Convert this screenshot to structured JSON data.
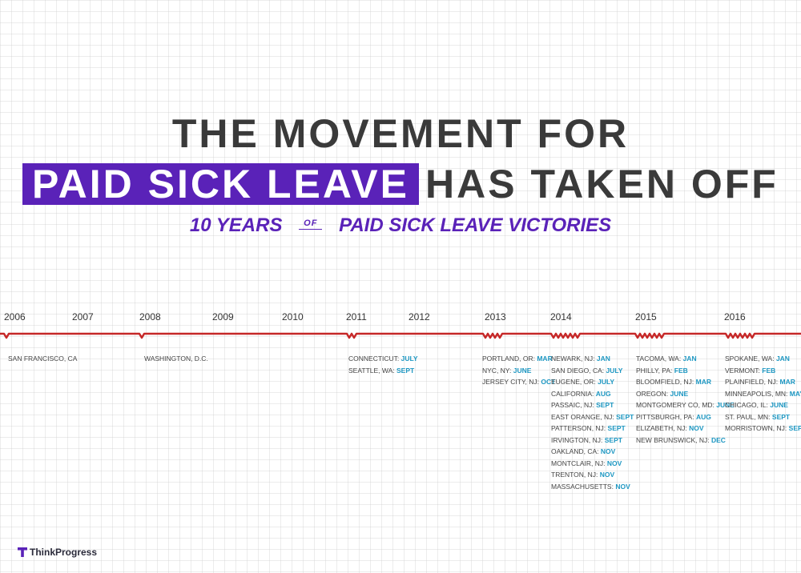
{
  "title": {
    "line1": "THE MOVEMENT FOR",
    "highlight": "PAID SICK LEAVE",
    "rest": "HAS TAKEN OFF"
  },
  "subtitle": {
    "before": "10 YEARS",
    "of": "OF",
    "after": "PAID SICK LEAVE VICTORIES"
  },
  "years": [
    "2006",
    "2007",
    "2008",
    "2009",
    "2010",
    "2011",
    "2012",
    "2013",
    "2014",
    "2015",
    "2016"
  ],
  "colors": {
    "timeline": "#c62828",
    "accent": "#5a22b8",
    "month": "#1d97c2"
  },
  "victories": [
    {
      "year": "2006",
      "entries": [
        {
          "place": "SAN FRANCISCO, CA",
          "month": ""
        }
      ]
    },
    {
      "year": "2008",
      "entries": [
        {
          "place": "WASHINGTON, D.C.",
          "month": ""
        }
      ]
    },
    {
      "year": "2011",
      "entries": [
        {
          "place": "CONNECTICUT:",
          "month": "JULY"
        },
        {
          "place": "SEATTLE, WA:",
          "month": "SEPT"
        }
      ]
    },
    {
      "year": "2013",
      "entries": [
        {
          "place": "PORTLAND, OR:",
          "month": "MAR"
        },
        {
          "place": "NYC, NY:",
          "month": "JUNE"
        },
        {
          "place": "JERSEY CITY, NJ:",
          "month": "OCT"
        }
      ]
    },
    {
      "year": "2014",
      "entries": [
        {
          "place": "NEWARK, NJ:",
          "month": "JAN"
        },
        {
          "place": "SAN DIEGO, CA:",
          "month": "JULY"
        },
        {
          "place": "EUGENE, OR:",
          "month": "JULY"
        },
        {
          "place": "CALIFORNIA:",
          "month": "AUG"
        },
        {
          "place": "PASSAIC, NJ:",
          "month": "SEPT"
        },
        {
          "place": "EAST ORANGE, NJ:",
          "month": "SEPT"
        },
        {
          "place": "PATTERSON, NJ:",
          "month": "SEPT"
        },
        {
          "place": "IRVINGTON, NJ:",
          "month": "SEPT"
        },
        {
          "place": "OAKLAND, CA:",
          "month": "NOV"
        },
        {
          "place": "MONTCLAIR, NJ:",
          "month": "NOV"
        },
        {
          "place": "TRENTON, NJ:",
          "month": "NOV"
        },
        {
          "place": "MASSACHUSETTS:",
          "month": "NOV"
        }
      ]
    },
    {
      "year": "2015",
      "entries": [
        {
          "place": "TACOMA, WA:",
          "month": "JAN"
        },
        {
          "place": "PHILLY, PA:",
          "month": "FEB"
        },
        {
          "place": "BLOOMFIELD, NJ:",
          "month": "MAR"
        },
        {
          "place": "OREGON:",
          "month": "JUNE"
        },
        {
          "place": "MONTGOMERY CO, MD:",
          "month": "JUNE"
        },
        {
          "place": "PITTSBURGH, PA:",
          "month": "AUG"
        },
        {
          "place": "ELIZABETH, NJ:",
          "month": "NOV"
        },
        {
          "place": "NEW BRUNSWICK, NJ:",
          "month": "DEC"
        }
      ]
    },
    {
      "year": "2016",
      "entries": [
        {
          "place": "SPOKANE, WA:",
          "month": "JAN"
        },
        {
          "place": "VERMONT:",
          "month": "FEB"
        },
        {
          "place": "PLAINFIELD, NJ:",
          "month": "MAR"
        },
        {
          "place": "MINNEAPOLIS, MN:",
          "month": "MAY"
        },
        {
          "place": "CHICAGO, IL:",
          "month": "JUNE"
        },
        {
          "place": "ST. PAUL, MN:",
          "month": "SEPT"
        },
        {
          "place": "MORRISTOWN, NJ:",
          "month": "SEPT"
        }
      ]
    }
  ],
  "brand": {
    "name": "ThinkProgress",
    "icon": "t-logo-icon"
  }
}
